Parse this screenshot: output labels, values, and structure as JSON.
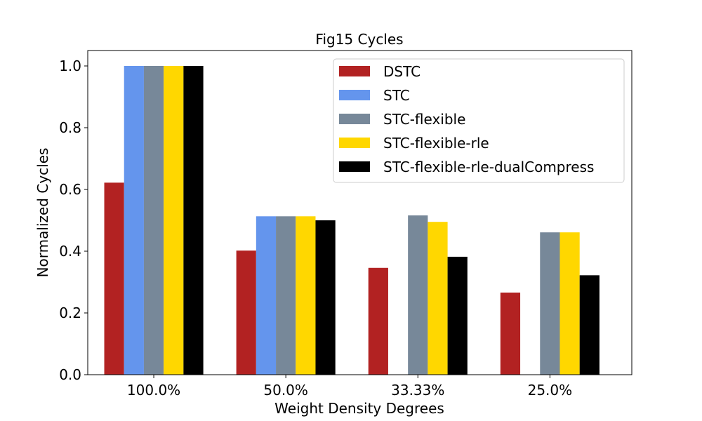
{
  "chart_data": {
    "type": "bar",
    "title": "Fig15 Cycles",
    "xlabel": "Weight Density Degrees",
    "ylabel": "Normalized Cycles",
    "categories": [
      "100.0%",
      "50.0%",
      "33.33%",
      "25.0%"
    ],
    "ylim": [
      0,
      1.05
    ],
    "yticks": [
      0.0,
      0.2,
      0.4,
      0.6,
      0.8,
      1.0
    ],
    "ytick_labels": [
      "0.0",
      "0.2",
      "0.4",
      "0.6",
      "0.8",
      "1.0"
    ],
    "grid": false,
    "legend_position": "top-right",
    "series": [
      {
        "name": "DSTC",
        "color": "#b22222",
        "values": [
          0.622,
          0.402,
          0.346,
          0.266
        ]
      },
      {
        "name": "STC",
        "color": "#6495ed",
        "values": [
          1.0,
          0.513,
          0,
          0
        ]
      },
      {
        "name": "STC-flexible",
        "color": "#778899",
        "values": [
          1.0,
          0.513,
          0.516,
          0.461
        ]
      },
      {
        "name": "STC-flexible-rle",
        "color": "#ffd700",
        "values": [
          1.0,
          0.513,
          0.495,
          0.461
        ]
      },
      {
        "name": "STC-flexible-rle-dualCompress",
        "color": "#000000",
        "values": [
          1.0,
          0.5,
          0.382,
          0.322
        ]
      }
    ]
  }
}
